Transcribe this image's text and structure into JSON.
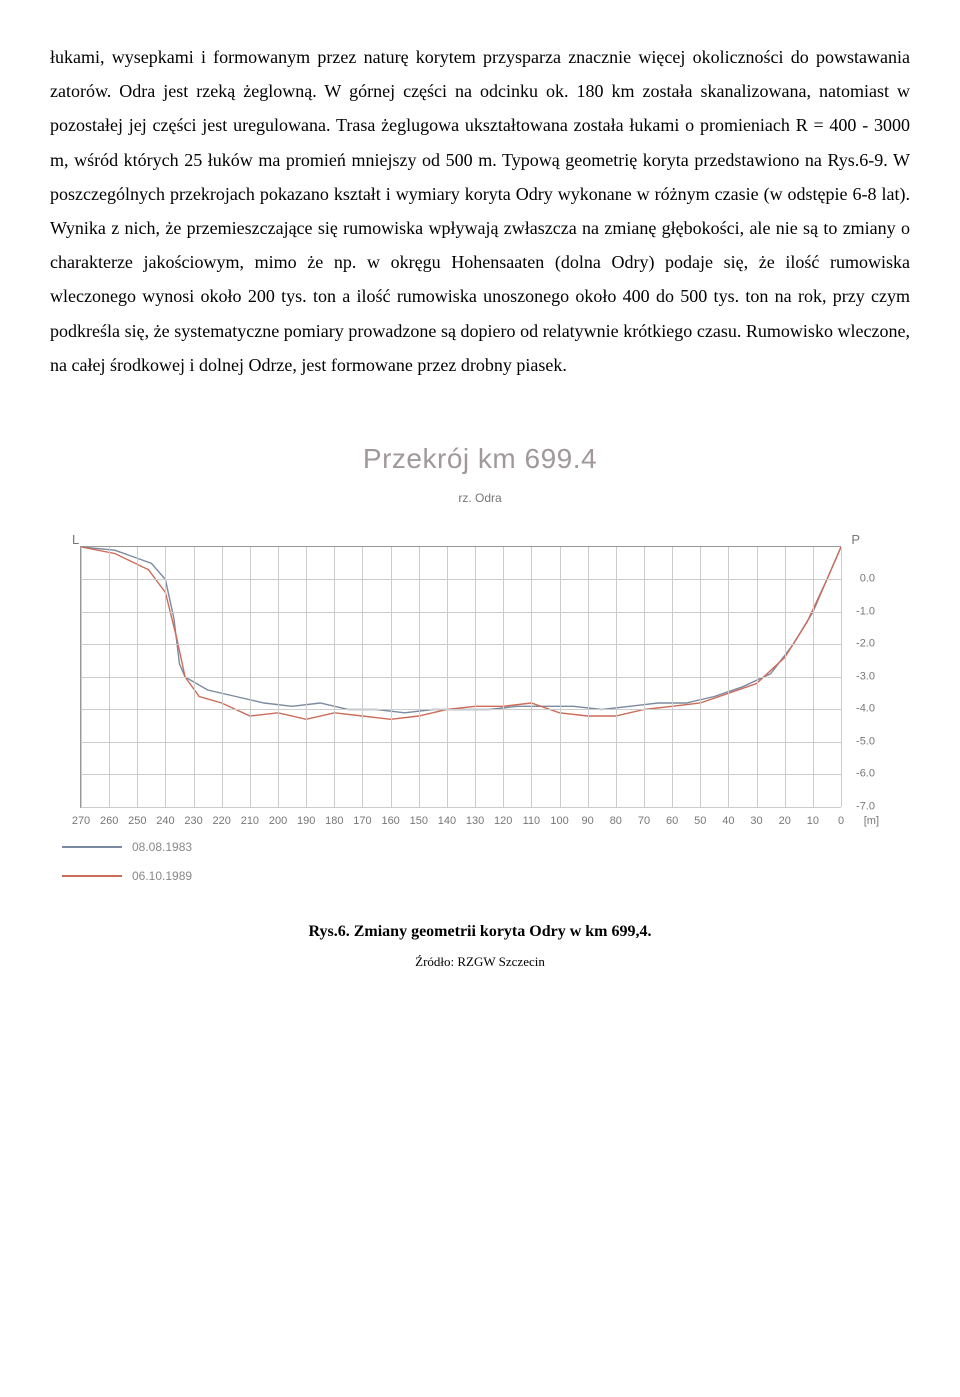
{
  "body_text": "łukami, wysepkami i formowanym przez naturę korytem przysparza znacznie więcej okoliczności do powstawania zatorów. Odra jest rzeką żeglowną. W górnej części na odcinku ok. 180 km została skanalizowana, natomiast w pozostałej jej części jest uregulowana. Trasa żeglugowa ukształtowana została łukami o promieniach R = 400 - 3000 m, wśród których 25 łuków ma promień mniejszy od 500 m. Typową geometrię koryta przedstawiono na Rys.6-9. W poszczególnych przekrojach pokazano kształt i wymiary koryta Odry wykonane w różnym czasie (w odstępie  6-8 lat). Wynika z nich, że przemieszczające się rumowiska wpływają zwłaszcza na zmianę głębokości, ale nie są to zmiany o charakterze jakościowym, mimo że np. w okręgu Hohensaaten (dolna Odry) podaje się, że ilość rumowiska wleczonego wynosi około 200 tys. ton a ilość rumowiska unoszonego około 400 do 500 tys. ton na rok, przy czym podkreśla się, że systematyczne pomiary prowadzone są dopiero od relatywnie krótkiego czasu. Rumowisko wleczone, na całej środkowej i dolnej Odrze, jest formowane przez drobny piasek.",
  "chart": {
    "title": "Przekrój km 699.4",
    "subtitle": "rz. Odra",
    "left_label": "L",
    "right_label": "P",
    "x_unit": "[m]",
    "x_min": 0,
    "x_max": 270,
    "x_tick_step": 10,
    "y_min": -7.0,
    "y_max": 1.0,
    "y_ticks": [
      "0.0",
      "-1.0",
      "-2.0",
      "-3.0",
      "-4.0",
      "-5.0",
      "-6.0",
      "-7.0"
    ],
    "grid_color": "#cccccc",
    "series": [
      {
        "label": "08.08.1983",
        "color": "#7b8aa0",
        "points": [
          [
            270,
            1.0
          ],
          [
            258,
            0.9
          ],
          [
            245,
            0.5
          ],
          [
            240,
            0.0
          ],
          [
            237,
            -1.2
          ],
          [
            235,
            -2.6
          ],
          [
            233,
            -3.0
          ],
          [
            225,
            -3.4
          ],
          [
            215,
            -3.6
          ],
          [
            205,
            -3.8
          ],
          [
            195,
            -3.9
          ],
          [
            185,
            -3.8
          ],
          [
            175,
            -4.0
          ],
          [
            165,
            -4.0
          ],
          [
            155,
            -4.1
          ],
          [
            145,
            -4.0
          ],
          [
            135,
            -4.0
          ],
          [
            125,
            -4.0
          ],
          [
            115,
            -3.9
          ],
          [
            105,
            -3.9
          ],
          [
            95,
            -3.9
          ],
          [
            85,
            -4.0
          ],
          [
            75,
            -3.9
          ],
          [
            65,
            -3.8
          ],
          [
            55,
            -3.8
          ],
          [
            45,
            -3.6
          ],
          [
            35,
            -3.3
          ],
          [
            25,
            -2.9
          ],
          [
            17,
            -2.0
          ],
          [
            10,
            -1.0
          ],
          [
            4,
            0.2
          ],
          [
            0,
            1.0
          ]
        ]
      },
      {
        "label": "06.10.1989",
        "color": "#cc6b58",
        "points": [
          [
            270,
            1.0
          ],
          [
            258,
            0.8
          ],
          [
            246,
            0.3
          ],
          [
            240,
            -0.4
          ],
          [
            236,
            -1.8
          ],
          [
            233,
            -3.0
          ],
          [
            228,
            -3.6
          ],
          [
            220,
            -3.8
          ],
          [
            210,
            -4.2
          ],
          [
            200,
            -4.1
          ],
          [
            190,
            -4.3
          ],
          [
            180,
            -4.1
          ],
          [
            170,
            -4.2
          ],
          [
            160,
            -4.3
          ],
          [
            150,
            -4.2
          ],
          [
            140,
            -4.0
          ],
          [
            130,
            -3.9
          ],
          [
            120,
            -3.9
          ],
          [
            110,
            -3.8
          ],
          [
            100,
            -4.1
          ],
          [
            90,
            -4.2
          ],
          [
            80,
            -4.2
          ],
          [
            70,
            -4.0
          ],
          [
            60,
            -3.9
          ],
          [
            50,
            -3.8
          ],
          [
            40,
            -3.5
          ],
          [
            30,
            -3.2
          ],
          [
            20,
            -2.4
          ],
          [
            12,
            -1.3
          ],
          [
            5,
            0.0
          ],
          [
            0,
            1.0
          ]
        ]
      }
    ]
  },
  "caption": "Rys.6. Zmiany geometrii koryta Odry w km 699,4.",
  "source": "Źródło: RZGW Szczecin"
}
